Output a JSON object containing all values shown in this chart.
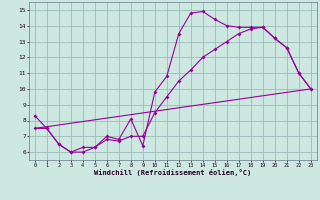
{
  "xlabel": "Windchill (Refroidissement éolien,°C)",
  "bg_color": "#cce8e0",
  "grid_color": "#99bbbb",
  "line_color": "#990099",
  "xlim": [
    -0.5,
    23.5
  ],
  "ylim": [
    5.5,
    15.5
  ],
  "xticks": [
    0,
    1,
    2,
    3,
    4,
    5,
    6,
    7,
    8,
    9,
    10,
    11,
    12,
    13,
    14,
    15,
    16,
    17,
    18,
    19,
    20,
    21,
    22,
    23
  ],
  "yticks": [
    6,
    7,
    8,
    9,
    10,
    11,
    12,
    13,
    14,
    15
  ],
  "line1_x": [
    0,
    1,
    2,
    3,
    4,
    5,
    6,
    7,
    8,
    9,
    10,
    11,
    12,
    13,
    14,
    15,
    16,
    17,
    18,
    19,
    20,
    21,
    22,
    23
  ],
  "line1_y": [
    8.3,
    7.5,
    6.5,
    6.0,
    6.3,
    6.3,
    7.0,
    6.8,
    8.1,
    6.4,
    9.8,
    10.8,
    13.5,
    14.8,
    14.9,
    14.4,
    14.0,
    13.9,
    13.9,
    13.9,
    13.2,
    12.6,
    11.0,
    10.0
  ],
  "line2_x": [
    0,
    1,
    2,
    3,
    4,
    5,
    6,
    7,
    8,
    9,
    10,
    11,
    12,
    13,
    14,
    15,
    16,
    17,
    18,
    19,
    20,
    21,
    22,
    23
  ],
  "line2_y": [
    7.5,
    7.5,
    6.5,
    6.0,
    6.0,
    6.3,
    6.8,
    6.7,
    7.0,
    7.0,
    8.5,
    9.5,
    10.5,
    11.2,
    12.0,
    12.5,
    13.0,
    13.5,
    13.8,
    13.9,
    13.2,
    12.6,
    11.0,
    10.0
  ],
  "line3_x": [
    0,
    23
  ],
  "line3_y": [
    7.5,
    10.0
  ]
}
